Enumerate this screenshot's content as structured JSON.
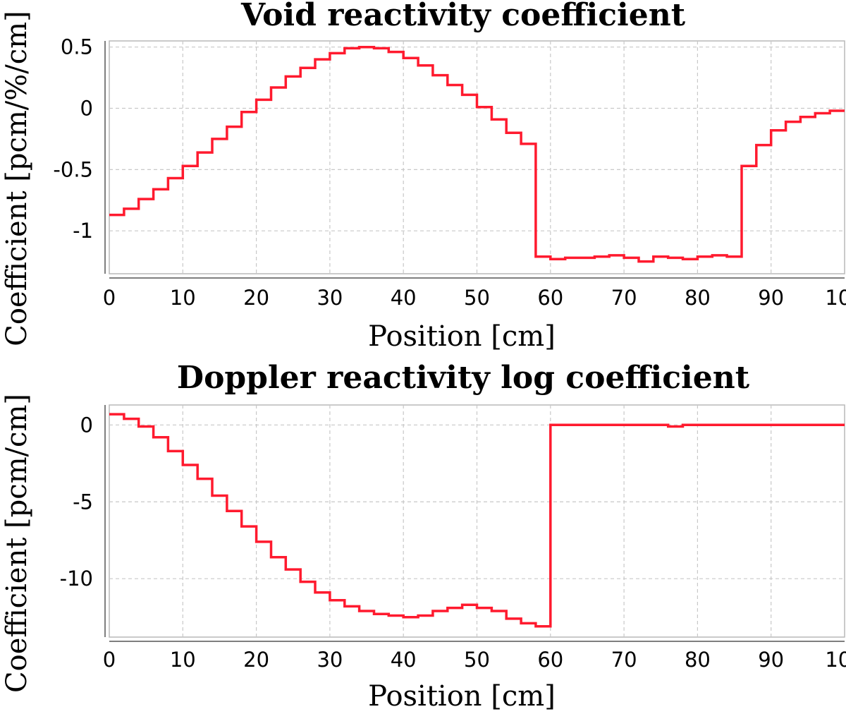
{
  "chart_data": [
    {
      "type": "line",
      "title": "Void reactivity coefficient",
      "xlabel": "Position [cm]",
      "ylabel": "Coefficient [pcm/%/cm]",
      "xlim": [
        0,
        100
      ],
      "ylim": [
        -1.35,
        0.55
      ],
      "xticks": [
        "0",
        "10",
        "20",
        "30",
        "40",
        "50",
        "60",
        "70",
        "80",
        "90",
        "100"
      ],
      "xtick_values": [
        0,
        10,
        20,
        30,
        40,
        50,
        60,
        70,
        80,
        90,
        100
      ],
      "yticks": [
        "0.5",
        "0",
        "-0.5",
        "-1"
      ],
      "ytick_values": [
        0.5,
        0,
        -0.5,
        -1
      ],
      "grid": true,
      "step": true,
      "series": [
        {
          "color": "#ff1a2e",
          "x": [
            0,
            2,
            4,
            6,
            8,
            10,
            12,
            14,
            16,
            18,
            20,
            22,
            24,
            26,
            28,
            30,
            32,
            34,
            36,
            38,
            40,
            42,
            44,
            46,
            48,
            50,
            52,
            54,
            56,
            58,
            60,
            62,
            64,
            66,
            68,
            70,
            72,
            74,
            76,
            78,
            80,
            82,
            84,
            86,
            88,
            90,
            92,
            94,
            96,
            98
          ],
          "values": [
            -0.87,
            -0.82,
            -0.74,
            -0.66,
            -0.57,
            -0.47,
            -0.36,
            -0.25,
            -0.15,
            -0.03,
            0.07,
            0.17,
            0.26,
            0.33,
            0.4,
            0.45,
            0.49,
            0.5,
            0.49,
            0.46,
            0.41,
            0.35,
            0.27,
            0.19,
            0.11,
            0.01,
            -0.09,
            -0.2,
            -0.29,
            -1.21,
            -1.23,
            -1.22,
            -1.22,
            -1.21,
            -1.2,
            -1.22,
            -1.25,
            -1.21,
            -1.22,
            -1.23,
            -1.21,
            -1.2,
            -1.21,
            -0.47,
            -0.3,
            -0.18,
            -0.11,
            -0.07,
            -0.04,
            -0.02
          ]
        }
      ]
    },
    {
      "type": "line",
      "title": "Doppler reactivity log coefficient",
      "xlabel": "Position [cm]",
      "ylabel": "Coefficient [pcm/cm]",
      "xlim": [
        0,
        100
      ],
      "ylim": [
        -13.8,
        1.3
      ],
      "xticks": [
        "0",
        "10",
        "20",
        "30",
        "40",
        "50",
        "60",
        "70",
        "80",
        "90",
        "100"
      ],
      "xtick_values": [
        0,
        10,
        20,
        30,
        40,
        50,
        60,
        70,
        80,
        90,
        100
      ],
      "yticks": [
        "0",
        "-5",
        "-10"
      ],
      "ytick_values": [
        0,
        -5,
        -10
      ],
      "grid": true,
      "step": true,
      "series": [
        {
          "color": "#ff1a2e",
          "x": [
            0,
            2,
            4,
            6,
            8,
            10,
            12,
            14,
            16,
            18,
            20,
            22,
            24,
            26,
            28,
            30,
            32,
            34,
            36,
            38,
            40,
            42,
            44,
            46,
            48,
            50,
            52,
            54,
            56,
            58,
            60,
            62,
            64,
            66,
            68,
            70,
            72,
            74,
            76,
            78,
            80,
            82,
            84,
            86,
            88,
            90,
            92,
            94,
            96,
            98
          ],
          "values": [
            0.7,
            0.4,
            -0.1,
            -0.8,
            -1.7,
            -2.6,
            -3.5,
            -4.6,
            -5.6,
            -6.6,
            -7.6,
            -8.6,
            -9.4,
            -10.2,
            -10.9,
            -11.4,
            -11.8,
            -12.1,
            -12.3,
            -12.4,
            -12.5,
            -12.4,
            -12.1,
            -11.9,
            -11.7,
            -11.9,
            -12.1,
            -12.6,
            -12.9,
            -13.1,
            0,
            0,
            0,
            0,
            0,
            0,
            0,
            0,
            -0.1,
            0,
            0,
            0,
            0,
            0,
            0,
            0,
            0,
            0,
            0,
            0
          ]
        }
      ]
    }
  ]
}
